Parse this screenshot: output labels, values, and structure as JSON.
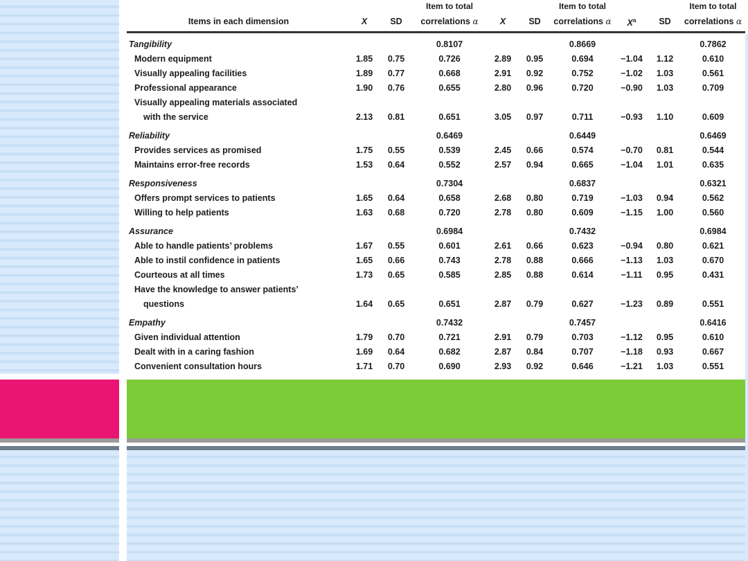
{
  "colors": {
    "stripe_base": "#d9eafc",
    "stripe_line": "#c4ddf4",
    "pink_bar": "#ea1572",
    "green_bar": "#7dcb39",
    "gray_divider": "#9b9b9b",
    "slate_divider": "#6e7d8c",
    "table_rule": "#343434",
    "table_text": "#1c1c1c"
  },
  "table": {
    "header": {
      "item_col": "Items in each dimension",
      "group_top": "Item to total",
      "mean": "X",
      "mean_sup": "a",
      "sd": "SD",
      "corr": "correlations",
      "alpha": "α"
    },
    "rows": [
      {
        "t": "section",
        "label": "Tangibility",
        "c": [
          "",
          "",
          "0.8107",
          "",
          "",
          "0.8669",
          "",
          "",
          "0.7862"
        ]
      },
      {
        "t": "item",
        "label": "Modern equipment",
        "c": [
          "1.85",
          "0.75",
          "0.726",
          "2.89",
          "0.95",
          "0.694",
          "−1.04",
          "1.12",
          "0.610"
        ]
      },
      {
        "t": "item",
        "label": "Visually appealing facilities",
        "c": [
          "1.89",
          "0.77",
          "0.668",
          "2.91",
          "0.92",
          "0.752",
          "−1.02",
          "1.03",
          "0.561"
        ]
      },
      {
        "t": "item",
        "label": "Professional appearance",
        "c": [
          "1.90",
          "0.76",
          "0.655",
          "2.80",
          "0.96",
          "0.720",
          "−0.90",
          "1.03",
          "0.709"
        ]
      },
      {
        "t": "item",
        "label": "Visually appealing materials associated",
        "c": [
          "",
          "",
          "",
          "",
          "",
          "",
          "",
          "",
          ""
        ]
      },
      {
        "t": "cont",
        "label": "with the service",
        "c": [
          "2.13",
          "0.81",
          "0.651",
          "3.05",
          "0.97",
          "0.711",
          "−0.93",
          "1.10",
          "0.609"
        ]
      },
      {
        "t": "section",
        "label": "Reliability",
        "c": [
          "",
          "",
          "0.6469",
          "",
          "",
          "0.6449",
          "",
          "",
          "0.6469"
        ]
      },
      {
        "t": "item",
        "label": "Provides services as promised",
        "c": [
          "1.75",
          "0.55",
          "0.539",
          "2.45",
          "0.66",
          "0.574",
          "−0.70",
          "0.81",
          "0.544"
        ]
      },
      {
        "t": "item",
        "label": "Maintains error-free records",
        "c": [
          "1.53",
          "0.64",
          "0.552",
          "2.57",
          "0.94",
          "0.665",
          "−1.04",
          "1.01",
          "0.635"
        ]
      },
      {
        "t": "section",
        "label": "Responsiveness",
        "c": [
          "",
          "",
          "0.7304",
          "",
          "",
          "0.6837",
          "",
          "",
          "0.6321"
        ]
      },
      {
        "t": "item",
        "label": "Offers prompt services to patients",
        "c": [
          "1.65",
          "0.64",
          "0.658",
          "2.68",
          "0.80",
          "0.719",
          "−1.03",
          "0.94",
          "0.562"
        ]
      },
      {
        "t": "item",
        "label": "Willing to help patients",
        "c": [
          "1.63",
          "0.68",
          "0.720",
          "2.78",
          "0.80",
          "0.609",
          "−1.15",
          "1.00",
          "0.560"
        ]
      },
      {
        "t": "section",
        "label": "Assurance",
        "c": [
          "",
          "",
          "0.6984",
          "",
          "",
          "0.7432",
          "",
          "",
          "0.6984"
        ]
      },
      {
        "t": "item",
        "label": "Able to handle patients’ problems",
        "c": [
          "1.67",
          "0.55",
          "0.601",
          "2.61",
          "0.66",
          "0.623",
          "−0.94",
          "0.80",
          "0.621"
        ]
      },
      {
        "t": "item",
        "label": "Able to instil confidence in patients",
        "c": [
          "1.65",
          "0.66",
          "0.743",
          "2.78",
          "0.88",
          "0.666",
          "−1.13",
          "1.03",
          "0.670"
        ]
      },
      {
        "t": "item",
        "label": "Courteous at all times",
        "c": [
          "1.73",
          "0.65",
          "0.585",
          "2.85",
          "0.88",
          "0.614",
          "−1.11",
          "0.95",
          "0.431"
        ]
      },
      {
        "t": "item",
        "label": "Have the knowledge to answer patients’",
        "c": [
          "",
          "",
          "",
          "",
          "",
          "",
          "",
          "",
          ""
        ]
      },
      {
        "t": "cont",
        "label": "questions",
        "c": [
          "1.64",
          "0.65",
          "0.651",
          "2.87",
          "0.79",
          "0.627",
          "−1.23",
          "0.89",
          "0.551"
        ]
      },
      {
        "t": "section",
        "label": "Empathy",
        "c": [
          "",
          "",
          "0.7432",
          "",
          "",
          "0.7457",
          "",
          "",
          "0.6416"
        ]
      },
      {
        "t": "item",
        "label": "Given individual attention",
        "c": [
          "1.79",
          "0.70",
          "0.721",
          "2.91",
          "0.79",
          "0.703",
          "−1.12",
          "0.95",
          "0.610"
        ]
      },
      {
        "t": "item",
        "label": "Dealt with in a caring fashion",
        "c": [
          "1.69",
          "0.64",
          "0.682",
          "2.87",
          "0.84",
          "0.707",
          "−1.18",
          "0.93",
          "0.667"
        ]
      },
      {
        "t": "item",
        "label": "Convenient consultation hours",
        "c": [
          "1.71",
          "0.70",
          "0.690",
          "2.93",
          "0.92",
          "0.646",
          "−1.21",
          "1.03",
          "0.551"
        ]
      }
    ]
  }
}
